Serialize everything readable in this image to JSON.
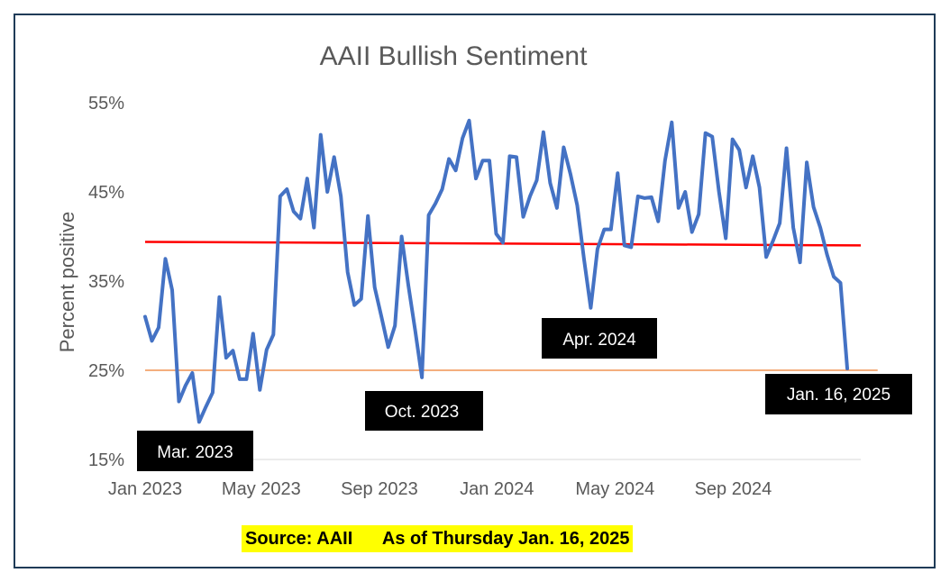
{
  "chart_data": {
    "type": "line",
    "title": "AAII Bullish Sentiment",
    "ylabel": "Percent positive",
    "xlabel": "",
    "ylim": [
      15,
      55
    ],
    "yticks": [
      {
        "value": 15,
        "label": "15%"
      },
      {
        "value": 25,
        "label": "25%"
      },
      {
        "value": 35,
        "label": "35%"
      },
      {
        "value": 45,
        "label": "45%"
      },
      {
        "value": 55,
        "label": "55%"
      }
    ],
    "xlim": [
      0,
      106
    ],
    "xticks": [
      {
        "week": 0,
        "label": "Jan 2023"
      },
      {
        "week": 17.2,
        "label": "May 2023"
      },
      {
        "week": 34.7,
        "label": "Sep 2023"
      },
      {
        "week": 52.1,
        "label": "Jan 2024"
      },
      {
        "week": 69.6,
        "label": "May 2024"
      },
      {
        "week": 87.1,
        "label": "Sep 2024"
      }
    ],
    "series": [
      {
        "name": "AAII Bullish %",
        "color": "#4472c4",
        "values": [
          31.0,
          28.3,
          29.8,
          37.5,
          34.0,
          21.5,
          23.3,
          24.7,
          19.2,
          20.9,
          22.5,
          33.2,
          26.4,
          27.2,
          24.0,
          24.0,
          29.1,
          22.8,
          27.3,
          29.0,
          44.5,
          45.3,
          42.8,
          42.0,
          46.5,
          41.0,
          51.4,
          45.0,
          48.9,
          44.5,
          36.0,
          32.3,
          33.0,
          42.3,
          34.3,
          31.0,
          27.6,
          30.0,
          40.0,
          34.5,
          29.5,
          24.2,
          42.4,
          43.7,
          45.3,
          48.7,
          47.4,
          51.0,
          53.0,
          46.5,
          48.5,
          48.5,
          40.3,
          39.3,
          49.0,
          48.9,
          42.2,
          44.5,
          46.3,
          51.7,
          46.0,
          43.2,
          50.0,
          47.0,
          43.5,
          37.5,
          32.0,
          38.6,
          40.8,
          40.8,
          47.1,
          39.0,
          38.8,
          44.5,
          44.3,
          44.4,
          41.7,
          48.5,
          52.8,
          43.2,
          45.0,
          40.5,
          42.5,
          51.6,
          51.2,
          45.0,
          39.8,
          50.9,
          49.7,
          45.5,
          49.0,
          45.5,
          37.7,
          39.5,
          41.5,
          49.9,
          41.0,
          37.1,
          48.3,
          43.3,
          41.0,
          38.0,
          35.5,
          34.8,
          25.2
        ]
      },
      {
        "name": "Average",
        "color": "#ff0000",
        "from": {
          "week": 0,
          "value": 39.4
        },
        "to": {
          "week": 106,
          "value": 39.0
        }
      },
      {
        "name": "25% level",
        "color": "#ed7d31",
        "from": {
          "week": 0,
          "value": 25.0
        },
        "to": {
          "week": 108.5,
          "value": 25.0
        }
      }
    ],
    "annotations": [
      {
        "id": "mar-2023",
        "text": "Mar. 2023"
      },
      {
        "id": "oct-2023",
        "text": "Oct. 2023"
      },
      {
        "id": "apr-2024",
        "text": "Apr.  2024"
      },
      {
        "id": "jan-2025",
        "text": "Jan. 16, 2025"
      }
    ]
  },
  "source": {
    "text": "Source: AAII      As of Thursday Jan. 16, 2025",
    "highlight": "#ffff00"
  }
}
